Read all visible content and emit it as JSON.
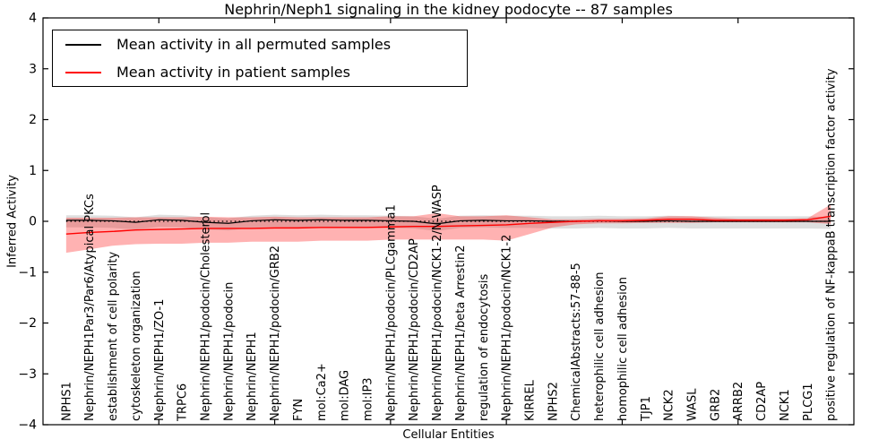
{
  "figure": {
    "title": "Nephrin/Neph1 signaling in the kidney podocyte -- 87 samples",
    "background": "#ffffff"
  },
  "legend": {
    "position": "upper left",
    "entries": [
      {
        "label": "Mean activity in all permuted samples",
        "color": "#000000"
      },
      {
        "label": "Mean activity in patient samples",
        "color": "#ff0000"
      }
    ]
  },
  "chart_data": {
    "type": "line",
    "title": "Nephrin/Neph1 signaling in the kidney podocyte -- 87 samples",
    "xlabel": "Cellular Entities",
    "ylabel": "Inferred Activity",
    "ylim": [
      -4,
      4
    ],
    "yticks": [
      -4,
      -3,
      -2,
      -1,
      0,
      1,
      2,
      3,
      4
    ],
    "ytick_labels": [
      "−4",
      "−3",
      "−2",
      "−1",
      "0",
      "1",
      "2",
      "3",
      "4"
    ],
    "grid": false,
    "legend_position": "upper left",
    "zero_line": {
      "y": 0,
      "style": "dotted",
      "color": "#000000"
    },
    "categories": [
      "NPHS1",
      "Nephrin/NEPH1Par3/Par6/Atypical PKCs",
      "establishment of cell polarity",
      "cytoskeleton organization",
      "Nephrin/NEPH1/ZO-1",
      "TRPC6",
      "Nephrin/NEPH1/podocin/Cholesterol",
      "Nephrin/NEPH1/podocin",
      "Nephrin/NEPH1",
      "Nephrin/NEPH1/podocin/GRB2",
      "FYN",
      "mol:Ca2+",
      "mol:DAG",
      "mol:IP3",
      "Nephrin/NEPH1/podocin/PLCgamma1",
      "Nephrin/NEPH1/podocin/CD2AP",
      "Nephrin/NEPH1/podocin/NCK1-2/N-WASP",
      "Nephrin/NEPH1/beta Arrestin2",
      "regulation of endocytosis",
      "Nephrin/NEPH1/podocin/NCK1-2",
      "KIRREL",
      "NPHS2",
      "ChemicalAbstracts:57-88-5",
      "heterophilic cell adhesion",
      "homophilic cell adhesion",
      "TJP1",
      "NCK2",
      "WASL",
      "GRB2",
      "ARRB2",
      "CD2AP",
      "NCK1",
      "PLCG1",
      "positive regulation of NF-kappaB transcription factor activity"
    ],
    "series": [
      {
        "name": "Mean activity in all permuted samples",
        "color": "#000000",
        "band_color": "rgba(0,0,0,0.13)",
        "values": [
          0.02,
          0.02,
          0.01,
          -0.02,
          0.03,
          0.02,
          -0.02,
          -0.04,
          0.01,
          0.03,
          0.02,
          0.03,
          0.02,
          0.02,
          0.01,
          0.0,
          -0.05,
          0.01,
          0.02,
          0.01,
          0.01,
          0.0,
          0.0,
          0.01,
          0.0,
          0.0,
          0.01,
          0.0,
          0.0,
          0.0,
          0.0,
          0.0,
          0.0,
          0.0
        ],
        "band_hi": [
          0.12,
          0.12,
          0.11,
          0.08,
          0.13,
          0.12,
          0.08,
          0.06,
          0.11,
          0.13,
          0.12,
          0.13,
          0.12,
          0.12,
          0.11,
          0.1,
          0.05,
          0.11,
          0.12,
          0.11,
          0.11,
          0.1,
          0.1,
          0.11,
          0.1,
          0.1,
          0.11,
          0.1,
          0.1,
          0.1,
          0.1,
          0.1,
          0.1,
          0.08
        ],
        "band_lo": [
          -0.12,
          -0.12,
          -0.13,
          -0.16,
          -0.11,
          -0.12,
          -0.16,
          -0.18,
          -0.13,
          -0.11,
          -0.12,
          -0.11,
          -0.12,
          -0.12,
          -0.13,
          -0.14,
          -0.19,
          -0.13,
          -0.12,
          -0.13,
          -0.13,
          -0.14,
          -0.14,
          -0.13,
          -0.14,
          -0.14,
          -0.13,
          -0.14,
          -0.14,
          -0.14,
          -0.14,
          -0.14,
          -0.14,
          -0.15
        ]
      },
      {
        "name": "Mean activity in patient samples",
        "color": "#ff0000",
        "band_color": "rgba(255,0,0,0.30)",
        "values": [
          -0.25,
          -0.22,
          -0.2,
          -0.17,
          -0.16,
          -0.15,
          -0.14,
          -0.14,
          -0.14,
          -0.13,
          -0.13,
          -0.12,
          -0.12,
          -0.12,
          -0.11,
          -0.1,
          -0.1,
          -0.09,
          -0.08,
          -0.07,
          -0.04,
          -0.02,
          0.0,
          0.01,
          0.01,
          0.02,
          0.04,
          0.04,
          0.02,
          0.02,
          0.02,
          0.02,
          0.03,
          0.1
        ],
        "band_hi": [
          0.07,
          0.07,
          0.07,
          0.08,
          0.08,
          0.08,
          0.09,
          0.08,
          0.08,
          0.09,
          0.08,
          0.08,
          0.08,
          0.08,
          0.1,
          0.1,
          0.16,
          0.1,
          0.1,
          0.12,
          0.08,
          0.04,
          0.04,
          0.05,
          0.05,
          0.06,
          0.1,
          0.1,
          0.07,
          0.05,
          0.05,
          0.05,
          0.06,
          0.33
        ],
        "band_lo": [
          -0.62,
          -0.55,
          -0.48,
          -0.45,
          -0.44,
          -0.44,
          -0.42,
          -0.42,
          -0.4,
          -0.4,
          -0.4,
          -0.38,
          -0.38,
          -0.38,
          -0.36,
          -0.36,
          -0.36,
          -0.36,
          -0.36,
          -0.38,
          -0.25,
          -0.12,
          -0.06,
          -0.04,
          -0.04,
          -0.03,
          -0.03,
          -0.03,
          -0.02,
          -0.02,
          -0.02,
          -0.02,
          -0.02,
          -0.05
        ]
      }
    ]
  }
}
